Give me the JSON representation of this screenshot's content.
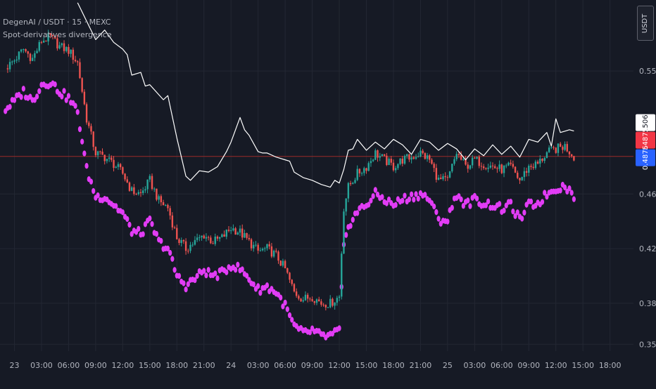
{
  "header": {
    "symbol_line": "DegenAI / USDT · 15 · MEXC",
    "indicator_line": "Spot-derivatives divergence"
  },
  "currency_button": "USDT",
  "colors": {
    "background": "#161a25",
    "grid": "#232733",
    "up": "#26a69a",
    "down": "#ef5350",
    "spot_line": "#ffffff",
    "dots": "#e23cf5",
    "label_white": "#ffffff",
    "label_red": "#f23645",
    "label_blue": "#2962ff",
    "ref_line": "#9c2a2a"
  },
  "chart_data": {
    "type": "line",
    "y_scale": "price (USDT)",
    "ylim": [
      0.345,
      0.602
    ],
    "y_ticks": [
      "0.5500",
      "0.4600",
      "0.4200",
      "0.3800",
      "0.3500"
    ],
    "y_tick_values": [
      0.55,
      0.46,
      0.42,
      0.38,
      0.35
    ],
    "x_ticks": [
      "23",
      "03:00",
      "06:00",
      "09:00",
      "12:00",
      "15:00",
      "18:00",
      "21:00",
      "24",
      "03:00",
      "06:00",
      "09:00",
      "12:00",
      "15:00",
      "18:00",
      "21:00",
      "25",
      "03:00",
      "06:00",
      "09:00",
      "12:00",
      "15:00",
      "18:00"
    ],
    "x_hours": [
      0,
      3,
      6,
      9,
      12,
      15,
      18,
      21,
      24,
      27,
      30,
      33,
      36,
      39,
      42,
      45,
      48,
      51,
      54,
      57,
      60,
      63,
      66
    ],
    "x_hour_range": [
      -1.6,
      68.6
    ],
    "price_labels": [
      {
        "text": "0.5061",
        "value": 0.5061,
        "style": "white"
      },
      {
        "text": "0.4875",
        "value": 0.4875,
        "style": "red"
      },
      {
        "text": "0.4875",
        "value": 0.4875,
        "style": "blue"
      }
    ],
    "reference_line": 0.4875,
    "series": [
      {
        "role": "spot",
        "style": "line",
        "x": [
          7.0,
          9.0,
          10.0,
          11.0,
          12.0,
          12.5,
          13.0,
          14.0,
          14.5,
          15.0,
          16.5,
          17.0,
          18.0,
          19.0,
          19.5,
          20.5,
          21.5,
          22.5,
          23.5,
          24.0,
          25.0,
          25.5,
          26.0,
          27.0,
          27.5,
          28.0,
          29.0,
          30.0,
          30.5,
          31.0,
          32.0,
          33.0,
          34.0,
          35.0,
          35.5,
          36.0,
          36.5,
          37.0,
          37.5,
          38.0,
          39.0,
          40.0,
          41.0,
          42.0,
          43.0,
          44.0,
          45.0,
          46.0,
          47.0,
          48.0,
          49.0,
          50.0,
          51.0,
          52.0,
          53.0,
          54.0,
          55.0,
          56.0,
          57.0,
          58.0,
          59.0,
          59.5,
          60.0,
          60.5,
          61.0,
          61.5,
          62.0
        ],
        "y": [
          0.6,
          0.573,
          0.58,
          0.571,
          0.566,
          0.562,
          0.547,
          0.549,
          0.539,
          0.54,
          0.529,
          0.532,
          0.501,
          0.473,
          0.47,
          0.477,
          0.476,
          0.48,
          0.491,
          0.498,
          0.516,
          0.507,
          0.503,
          0.491,
          0.49,
          0.49,
          0.487,
          0.485,
          0.484,
          0.476,
          0.472,
          0.47,
          0.467,
          0.465,
          0.47,
          0.468,
          0.478,
          0.492,
          0.493,
          0.5,
          0.492,
          0.498,
          0.493,
          0.5,
          0.496,
          0.489,
          0.5,
          0.498,
          0.492,
          0.497,
          0.493,
          0.485,
          0.493,
          0.488,
          0.496,
          0.489,
          0.495,
          0.487,
          0.5,
          0.498,
          0.505,
          0.495,
          0.515,
          0.505,
          0.506,
          0.507,
          0.5061
        ]
      },
      {
        "role": "derivatives",
        "style": "candles",
        "x": [
          -1.0,
          0.0,
          1.0,
          2.0,
          3.0,
          4.0,
          5.0,
          6.0,
          7.0,
          8.0,
          9.0,
          10.0,
          11.0,
          12.0,
          13.0,
          14.0,
          15.0,
          16.0,
          17.0,
          18.0,
          19.0,
          20.0,
          21.0,
          22.0,
          23.0,
          24.0,
          25.0,
          26.0,
          27.0,
          28.0,
          29.0,
          30.0,
          31.0,
          32.0,
          33.0,
          34.0,
          35.0,
          36.0,
          36.5,
          37.0,
          38.0,
          39.0,
          40.0,
          41.0,
          42.0,
          43.0,
          44.0,
          45.0,
          46.0,
          47.0,
          48.0,
          49.0,
          50.0,
          51.0,
          52.0,
          53.0,
          54.0,
          55.0,
          56.0,
          57.0,
          58.0,
          59.0,
          60.0,
          61.0,
          62.0
        ],
        "y": [
          0.552,
          0.558,
          0.566,
          0.559,
          0.572,
          0.575,
          0.568,
          0.565,
          0.556,
          0.515,
          0.49,
          0.487,
          0.482,
          0.475,
          0.462,
          0.46,
          0.47,
          0.455,
          0.45,
          0.428,
          0.42,
          0.425,
          0.43,
          0.425,
          0.428,
          0.435,
          0.432,
          0.425,
          0.418,
          0.42,
          0.415,
          0.405,
          0.388,
          0.383,
          0.385,
          0.38,
          0.38,
          0.385,
          0.45,
          0.465,
          0.475,
          0.48,
          0.49,
          0.485,
          0.48,
          0.485,
          0.487,
          0.49,
          0.485,
          0.47,
          0.47,
          0.49,
          0.48,
          0.485,
          0.482,
          0.48,
          0.478,
          0.48,
          0.47,
          0.48,
          0.482,
          0.49,
          0.493,
          0.495,
          0.4875
        ]
      },
      {
        "role": "divergence dots",
        "style": "dots",
        "x": [
          -1.0,
          0.0,
          1.0,
          2.0,
          3.0,
          4.0,
          5.0,
          6.0,
          7.0,
          8.0,
          9.0,
          10.0,
          11.0,
          12.0,
          13.0,
          14.0,
          15.0,
          16.0,
          17.0,
          18.0,
          19.0,
          20.0,
          21.0,
          22.0,
          23.0,
          24.0,
          25.0,
          26.0,
          27.0,
          28.0,
          29.0,
          30.0,
          31.0,
          32.0,
          33.0,
          34.0,
          35.0,
          36.0,
          36.5,
          37.0,
          38.0,
          39.0,
          40.0,
          41.0,
          42.0,
          43.0,
          44.0,
          45.0,
          46.0,
          47.0,
          48.0,
          49.0,
          50.0,
          51.0,
          52.0,
          53.0,
          54.0,
          55.0,
          56.0,
          57.0,
          58.0,
          59.0,
          60.0,
          61.0,
          62.0
        ],
        "y": [
          0.522,
          0.528,
          0.535,
          0.528,
          0.54,
          0.542,
          0.535,
          0.53,
          0.52,
          0.478,
          0.458,
          0.458,
          0.452,
          0.446,
          0.433,
          0.431,
          0.44,
          0.425,
          0.42,
          0.4,
          0.393,
          0.398,
          0.404,
          0.4,
          0.402,
          0.408,
          0.405,
          0.398,
          0.39,
          0.392,
          0.388,
          0.378,
          0.363,
          0.358,
          0.36,
          0.356,
          0.356,
          0.36,
          0.42,
          0.437,
          0.447,
          0.452,
          0.46,
          0.456,
          0.452,
          0.456,
          0.458,
          0.46,
          0.456,
          0.441,
          0.441,
          0.46,
          0.452,
          0.456,
          0.453,
          0.452,
          0.449,
          0.452,
          0.441,
          0.452,
          0.453,
          0.46,
          0.464,
          0.466,
          0.459
        ]
      }
    ]
  }
}
